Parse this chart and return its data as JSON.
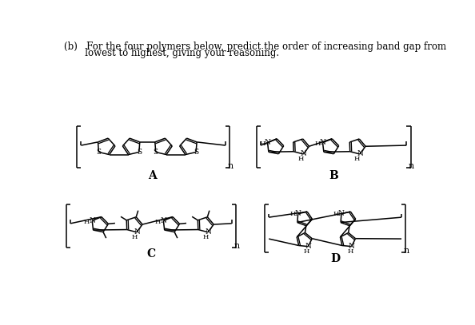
{
  "bg": "#ffffff",
  "text_color": "#000000",
  "lw": 1.1,
  "title_line1": "(b)   For the four polymers below, predict the order of increasing band gap from",
  "title_line2": "       lowest to highest, giving your reasoning.",
  "label_A": "A",
  "label_B": "B",
  "label_C": "C",
  "label_D": "D"
}
